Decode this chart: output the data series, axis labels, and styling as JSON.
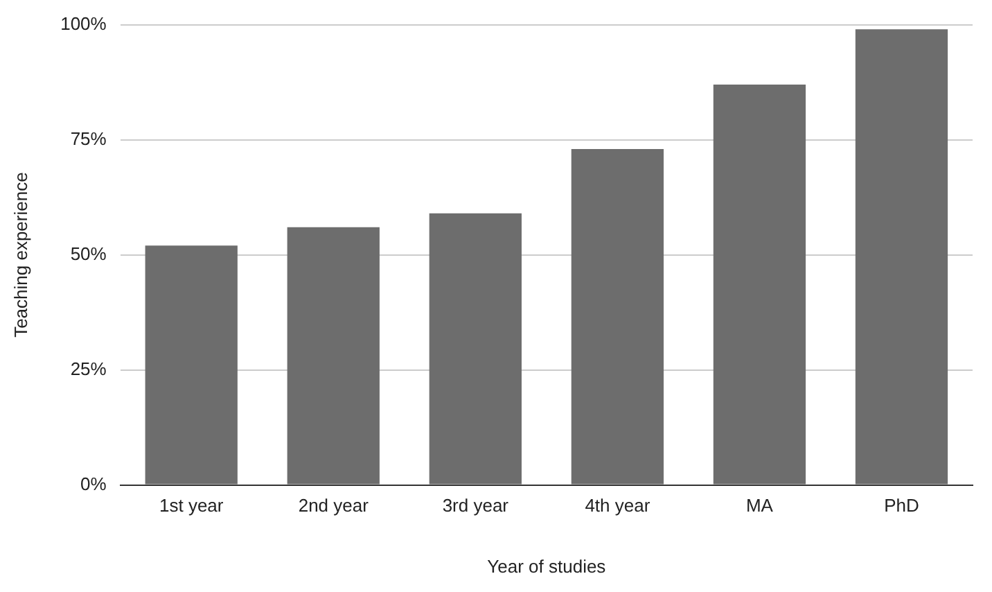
{
  "chart_data": {
    "type": "bar",
    "xlabel": "Year of studies",
    "ylabel": "Teaching experience",
    "categories": [
      "1st year",
      "2nd year",
      "3rd year",
      "4th year",
      "MA",
      "PhD"
    ],
    "values": [
      52,
      56,
      59,
      73,
      87,
      99
    ],
    "color": "#6d6d6d",
    "ylim": [
      0,
      100
    ],
    "yticks": [
      {
        "value": 0,
        "label": "0%"
      },
      {
        "value": 25,
        "label": "25%"
      },
      {
        "value": 50,
        "label": "50%"
      },
      {
        "value": 75,
        "label": "75%"
      },
      {
        "value": 100,
        "label": "100%"
      }
    ],
    "grid": "y",
    "legend": false
  }
}
